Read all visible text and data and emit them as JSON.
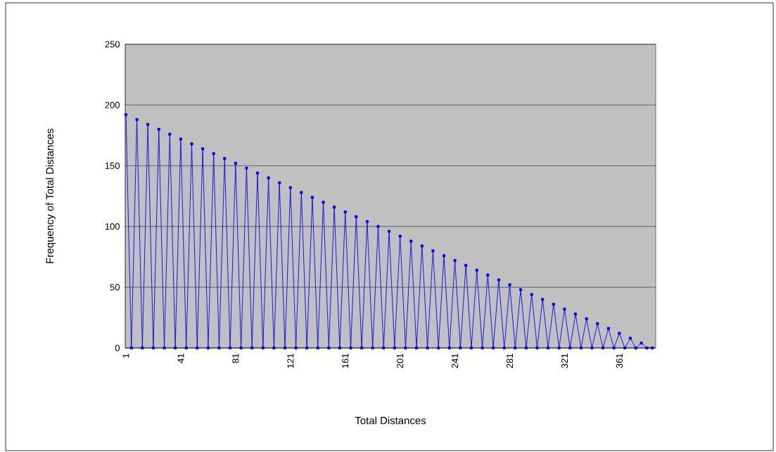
{
  "chart_data": {
    "type": "line",
    "xlabel": "Total Distances",
    "ylabel": "Frequency  of  Total Distances",
    "x": [
      1,
      5,
      9,
      13,
      17,
      21,
      25,
      29,
      33,
      37,
      41,
      45,
      49,
      53,
      57,
      61,
      65,
      69,
      73,
      77,
      81,
      85,
      89,
      93,
      97,
      101,
      105,
      109,
      113,
      117,
      121,
      125,
      129,
      133,
      137,
      141,
      145,
      149,
      153,
      157,
      161,
      165,
      169,
      173,
      177,
      181,
      185,
      189,
      193,
      197,
      201,
      205,
      209,
      213,
      217,
      221,
      225,
      229,
      233,
      237,
      241,
      245,
      249,
      253,
      257,
      261,
      265,
      269,
      273,
      277,
      281,
      285,
      289,
      293,
      297,
      301,
      305,
      309,
      313,
      317,
      321,
      325,
      329,
      333,
      337,
      341,
      345,
      349,
      353,
      357,
      361,
      365,
      369,
      373,
      377,
      381,
      385
    ],
    "series": [
      {
        "color": "#0000ff",
        "values": [
          192,
          0,
          188,
          0,
          184,
          0,
          180,
          0,
          176,
          0,
          172,
          0,
          168,
          0,
          164,
          0,
          160,
          0,
          156,
          0,
          152,
          0,
          148,
          0,
          144,
          0,
          140,
          0,
          136,
          0,
          132,
          0,
          128,
          0,
          124,
          0,
          120,
          0,
          116,
          0,
          112,
          0,
          108,
          0,
          104,
          0,
          100,
          0,
          96,
          0,
          92,
          0,
          88,
          0,
          84,
          0,
          80,
          0,
          76,
          0,
          72,
          0,
          68,
          0,
          64,
          0,
          60,
          0,
          56,
          0,
          52,
          0,
          48,
          0,
          44,
          0,
          40,
          0,
          36,
          0,
          32,
          0,
          28,
          0,
          24,
          0,
          20,
          0,
          16,
          0,
          12,
          0,
          8,
          0,
          4,
          0,
          0
        ]
      }
    ],
    "xlim": [
      0.5,
      387.5
    ],
    "xticks": [
      1,
      41,
      81,
      121,
      161,
      201,
      241,
      281,
      321,
      361
    ],
    "ylim": [
      0,
      250
    ],
    "yticks": [
      0,
      50,
      100,
      150,
      200,
      250
    ],
    "grid": "y",
    "marker": "square",
    "line_style": "solid"
  }
}
